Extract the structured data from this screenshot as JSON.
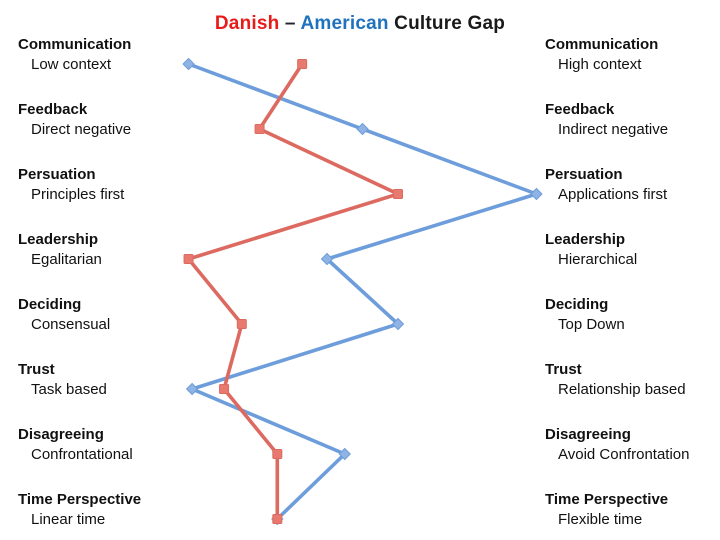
{
  "title": {
    "danish": "Danish",
    "separator": "–",
    "american": "American",
    "suffix": "Culture Gap"
  },
  "colors": {
    "danish_line": "#dd6a60",
    "danish_marker_fill": "#e8796e",
    "american_line": "#6d9ddb",
    "american_marker_fill": "#8fb3e4",
    "title_danish": "#e81b1b",
    "title_american": "#1f72be",
    "title_text": "#1a1a1a"
  },
  "categories": [
    {
      "name": "Communication",
      "left_label": "Low context",
      "right_label": "High context"
    },
    {
      "name": "Feedback",
      "left_label": "Direct negative",
      "right_label": "Indirect negative"
    },
    {
      "name": "Persuation",
      "left_label": "Principles first",
      "right_label": "Applications first"
    },
    {
      "name": "Leadership",
      "left_label": "Egalitarian",
      "right_label": "Hierarchical"
    },
    {
      "name": "Deciding",
      "left_label": "Consensual",
      "right_label": "Top Down"
    },
    {
      "name": "Trust",
      "left_label": "Task based",
      "right_label": "Relationship based"
    },
    {
      "name": "Disagreeing",
      "left_label": "Confrontational",
      "right_label": "Avoid Confrontation"
    },
    {
      "name": "Time Perspective",
      "left_label": "Linear time",
      "right_label": "Flexible time"
    }
  ],
  "chart_data": {
    "type": "line",
    "title": "Danish – American Culture Gap",
    "orientation": "vertical_categories_horizontal_values",
    "categories": [
      "Communication",
      "Feedback",
      "Persuation",
      "Leadership",
      "Deciding",
      "Trust",
      "Disagreeing",
      "Time Perspective"
    ],
    "left_pole_labels": [
      "Low context",
      "Direct negative",
      "Principles first",
      "Egalitarian",
      "Consensual",
      "Task based",
      "Confrontational",
      "Linear time"
    ],
    "right_pole_labels": [
      "High context",
      "Indirect negative",
      "Applications first",
      "Hierarchical",
      "Top Down",
      "Relationship based",
      "Avoid Confrontation",
      "Flexible time"
    ],
    "value_range": [
      0,
      1
    ],
    "axes_visible": false,
    "grid": false,
    "legend_position": "in-title",
    "series": [
      {
        "name": "Danish",
        "color": "#dd6a60",
        "marker": "square",
        "values": [
          0.33,
          0.21,
          0.6,
          0.01,
          0.16,
          0.11,
          0.26,
          0.26
        ]
      },
      {
        "name": "American",
        "color": "#6d9ddb",
        "marker": "diamond",
        "values": [
          0.01,
          0.5,
          0.99,
          0.4,
          0.6,
          0.02,
          0.45,
          0.26
        ]
      }
    ]
  }
}
